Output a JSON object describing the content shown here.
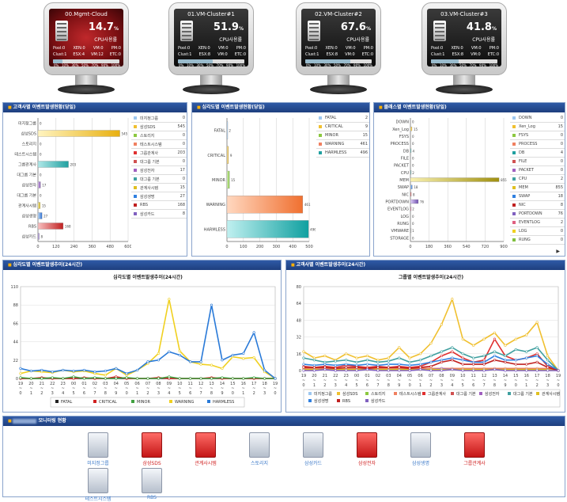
{
  "monitors": [
    {
      "name": "00.Mgmt-Cloud",
      "pct": "14.7",
      "unit": "%",
      "label": "CPU사용률",
      "r1": [
        "Pool:0",
        "XEN:0",
        "VM:0",
        "PM:0"
      ],
      "r2": [
        "Clust:1",
        "ESX:4",
        "VM:12",
        "ETC:0"
      ],
      "fill": 14.7,
      "theme": "red"
    },
    {
      "name": "01.VM-Cluster#1",
      "pct": "51.9",
      "unit": "%",
      "label": "CPU사용률",
      "r1": [
        "Pool:0",
        "XEN:0",
        "VM:0",
        "PM:0"
      ],
      "r2": [
        "Clust:1",
        "ESX:8",
        "VM:0",
        "ETC:0"
      ],
      "fill": 51.9,
      "theme": "dark"
    },
    {
      "name": "02.VM-Cluster#2",
      "pct": "67.6",
      "unit": "%",
      "label": "CPU사용률",
      "r1": [
        "Pool:0",
        "XEN:0",
        "VM:0",
        "PM:0"
      ],
      "r2": [
        "Clust:1",
        "ESX:8",
        "VM:0",
        "ETC:0"
      ],
      "fill": 67.6,
      "theme": "dark"
    },
    {
      "name": "03.VM-Cluster#3",
      "pct": "41.8",
      "unit": "%",
      "label": "CPU사용률",
      "r1": [
        "Pool:0",
        "XEN:0",
        "VM:0",
        "PM:0"
      ],
      "r2": [
        "Clust:1",
        "ESX:8",
        "VM:0",
        "ETC:0"
      ],
      "fill": 41.8,
      "theme": "dark"
    }
  ],
  "monitor_ticks": [
    "0%",
    "10%",
    "30%",
    "50%",
    "70%",
    "90%",
    "100%"
  ],
  "panel1": {
    "title": "고객사별 이벤트발생현황(당일)",
    "categories": [
      "미지정그룹",
      "삼성SDS",
      "스토리지",
      "테스트시스템",
      "그룹관계사",
      "대그룹 기본",
      "삼성전자",
      "대그룹 기본",
      "관계사시템",
      "삼성생명",
      "RBS",
      "삼성카드"
    ],
    "values": [
      0,
      545,
      0,
      0,
      203,
      0,
      17,
      0,
      15,
      27,
      168,
      8
    ],
    "xticks": [
      "0",
      "120",
      "240",
      "360",
      "480",
      "600"
    ],
    "legend": [
      {
        "name": "미지정그룹",
        "value": "0",
        "color": "#9ec8f0"
      },
      {
        "name": "삼성SDS",
        "value": "545",
        "color": "#f0c030"
      },
      {
        "name": "스토리지",
        "value": "0",
        "color": "#8cc840"
      },
      {
        "name": "테스트시스템",
        "value": "0",
        "color": "#f08060"
      },
      {
        "name": "그룹관계사",
        "value": "203",
        "color": "#e03030"
      },
      {
        "name": "대그룹 기본",
        "value": "0",
        "color": "#d05050"
      },
      {
        "name": "삼성전자",
        "value": "17",
        "color": "#a060c0"
      },
      {
        "name": "대그룹 기본",
        "value": "0",
        "color": "#40a0a0"
      },
      {
        "name": "관계사시템",
        "value": "15",
        "color": "#e0c020"
      },
      {
        "name": "삼성생명",
        "value": "27",
        "color": "#3080e0"
      },
      {
        "name": "RBS",
        "value": "168",
        "color": "#c02020"
      },
      {
        "name": "삼성카드",
        "value": "8",
        "color": "#8060c0"
      }
    ]
  },
  "panel2": {
    "title": "심각도별 이벤트발생현황(당일)",
    "categories": [
      "FATAL",
      "CRITICAL",
      "MINOR",
      "WARNING",
      "HARMLESS"
    ],
    "values": [
      2,
      9,
      15,
      461,
      496
    ],
    "xticks": [
      "0",
      "100",
      "200",
      "300",
      "400",
      "500"
    ],
    "legend": [
      {
        "name": "FATAL",
        "value": "2",
        "color": "#9ec8f0"
      },
      {
        "name": "CRITICAL",
        "value": "9",
        "color": "#f0c030"
      },
      {
        "name": "MINOR",
        "value": "15",
        "color": "#8cc840"
      },
      {
        "name": "WARNING",
        "value": "461",
        "color": "#f08060"
      },
      {
        "name": "HARMLESS",
        "value": "496",
        "color": "#20a0a0"
      }
    ]
  },
  "panel3": {
    "title": "클래스별 이벤트발생현황(당일)",
    "categories": [
      "DOWN",
      "Xen_Log",
      "FSYS",
      "PROCESS",
      "DB",
      "FILE",
      "PACKET",
      "CPU",
      "MEM",
      "SWAP",
      "NIC",
      "PORTDOWN",
      "EVENTLOG",
      "LOG",
      "RUNG",
      "VMWARE",
      "STORAGE"
    ],
    "values": [
      0,
      15,
      0,
      0,
      4,
      0,
      0,
      2,
      855,
      18,
      8,
      76,
      2,
      0,
      0,
      1,
      0
    ],
    "xticks": [
      "0",
      "180",
      "360",
      "540",
      "720",
      "900"
    ],
    "legend": [
      {
        "name": "DOWN",
        "value": "0",
        "color": "#9ec8f0"
      },
      {
        "name": "Xen_Log",
        "value": "15",
        "color": "#f0c030"
      },
      {
        "name": "FSYS",
        "value": "0",
        "color": "#8cc840"
      },
      {
        "name": "PROCESS",
        "value": "0",
        "color": "#f08060"
      },
      {
        "name": "DB",
        "value": "4",
        "color": "#20a0a0"
      },
      {
        "name": "FILE",
        "value": "0",
        "color": "#d05050"
      },
      {
        "name": "PACKET",
        "value": "0",
        "color": "#a060c0"
      },
      {
        "name": "CPU",
        "value": "2",
        "color": "#40a0a0"
      },
      {
        "name": "MEM",
        "value": "855",
        "color": "#e0c020"
      },
      {
        "name": "SWAP",
        "value": "18",
        "color": "#3080e0"
      },
      {
        "name": "NIC",
        "value": "8",
        "color": "#c02020"
      },
      {
        "name": "PORTDOWN",
        "value": "76",
        "color": "#8060c0"
      },
      {
        "name": "EVENTLOG",
        "value": "2",
        "color": "#e06080"
      },
      {
        "name": "LOG",
        "value": "0",
        "color": "#f0d020"
      },
      {
        "name": "RUNG",
        "value": "0",
        "color": "#80c040"
      }
    ]
  },
  "panel4": {
    "title": "심각도별 이벤트발생추이(24시간)",
    "chart_title": "심각도별 이벤트발생추이(24시간)",
    "yticks": [
      "0",
      "22",
      "44",
      "66",
      "88",
      "110"
    ],
    "x_top": [
      "19",
      "20",
      "21",
      "22",
      "23",
      "00",
      "01",
      "02",
      "03",
      "04",
      "05",
      "06",
      "07",
      "08",
      "09",
      "10",
      "11",
      "12",
      "13",
      "14",
      "15",
      "16",
      "17",
      "18",
      "19"
    ],
    "x_bottom": [
      "0",
      "1",
      "2",
      "3",
      "4",
      "5",
      "6",
      "7",
      "8",
      "9",
      "0",
      "1",
      "2",
      "3",
      "4",
      "5",
      "6",
      "7",
      "8",
      "9",
      "0",
      "1",
      "2",
      "3",
      "0"
    ],
    "series": [
      {
        "name": "FATAL",
        "color": "#222222",
        "values": [
          0,
          0,
          0,
          0,
          0,
          0,
          0,
          0,
          0,
          0,
          0,
          0,
          0,
          0,
          0,
          0,
          0,
          0,
          0,
          0,
          0,
          0,
          0,
          0,
          0
        ]
      },
      {
        "name": "CRITICAL",
        "color": "#d02020",
        "values": [
          0,
          0,
          1,
          0,
          0,
          0,
          1,
          0,
          0,
          2,
          0,
          0,
          0,
          1,
          0,
          0,
          0,
          0,
          1,
          0,
          0,
          0,
          0,
          0,
          0
        ]
      },
      {
        "name": "MINOR",
        "color": "#40a040",
        "values": [
          1,
          0,
          0,
          1,
          0,
          2,
          0,
          1,
          0,
          0,
          1,
          0,
          0,
          0,
          2,
          0,
          0,
          0,
          0,
          1,
          0,
          0,
          1,
          0,
          0
        ]
      },
      {
        "name": "WARNING",
        "color": "#f0d020",
        "values": [
          6,
          9,
          8,
          7,
          10,
          8,
          9,
          6,
          4,
          12,
          4,
          10,
          18,
          30,
          95,
          33,
          20,
          17,
          16,
          12,
          26,
          24,
          25,
          8,
          0
        ]
      },
      {
        "name": "HARMLESS",
        "color": "#2a7ad8",
        "values": [
          12,
          9,
          10,
          8,
          10,
          9,
          10,
          8,
          9,
          12,
          6,
          10,
          20,
          22,
          32,
          28,
          20,
          20,
          88,
          22,
          28,
          30,
          55,
          10,
          0
        ]
      }
    ],
    "ymax": 110
  },
  "panel5": {
    "title": "고객사별 이벤트발생추이(24시간)",
    "chart_title": "그룹별 이벤트발생추이(24시간)",
    "yticks": [
      "0",
      "16",
      "32",
      "48",
      "64",
      "80"
    ],
    "x_top": [
      "19",
      "20",
      "21",
      "22",
      "23",
      "00",
      "01",
      "02",
      "03",
      "04",
      "05",
      "06",
      "07",
      "08",
      "09",
      "10",
      "11",
      "12",
      "13",
      "14",
      "15",
      "16",
      "17",
      "18",
      "19"
    ],
    "x_bottom": [
      "0",
      "1",
      "2",
      "3",
      "4",
      "5",
      "6",
      "7",
      "8",
      "9",
      "0",
      "1",
      "2",
      "3",
      "4",
      "5",
      "6",
      "7",
      "8",
      "9",
      "0",
      "1",
      "2",
      "3",
      "0"
    ],
    "series": [
      {
        "name": "미지정그룹",
        "color": "#9ec8f0",
        "values": [
          2,
          2,
          2,
          2,
          2,
          2,
          2,
          2,
          2,
          2,
          2,
          2,
          2,
          2,
          2,
          2,
          2,
          2,
          2,
          2,
          2,
          2,
          2,
          2,
          0
        ]
      },
      {
        "name": "삼성SDS",
        "color": "#f0c030",
        "values": [
          18,
          12,
          14,
          10,
          16,
          12,
          14,
          10,
          12,
          22,
          12,
          16,
          26,
          44,
          68,
          30,
          24,
          30,
          36,
          24,
          30,
          34,
          46,
          14,
          0
        ]
      },
      {
        "name": "스토리지",
        "color": "#8cc840",
        "values": [
          1,
          1,
          1,
          1,
          1,
          1,
          1,
          1,
          1,
          1,
          1,
          1,
          1,
          1,
          1,
          1,
          1,
          1,
          1,
          1,
          1,
          1,
          1,
          1,
          0
        ]
      },
      {
        "name": "테스트시스템",
        "color": "#f08060",
        "values": [
          2,
          2,
          2,
          2,
          2,
          2,
          2,
          2,
          2,
          2,
          2,
          2,
          2,
          2,
          2,
          2,
          2,
          2,
          2,
          2,
          2,
          2,
          2,
          2,
          0
        ]
      },
      {
        "name": "그룹관계사",
        "color": "#e03030",
        "values": [
          4,
          3,
          4,
          3,
          5,
          4,
          3,
          4,
          3,
          4,
          3,
          4,
          8,
          14,
          18,
          12,
          8,
          10,
          30,
          14,
          10,
          12,
          16,
          4,
          0
        ]
      },
      {
        "name": "대그룹 기본",
        "color": "#d05050",
        "values": [
          1,
          1,
          1,
          1,
          1,
          1,
          1,
          1,
          1,
          1,
          1,
          1,
          1,
          1,
          1,
          1,
          1,
          1,
          1,
          1,
          1,
          1,
          1,
          1,
          0
        ]
      },
      {
        "name": "삼성전자",
        "color": "#a060c0",
        "values": [
          1,
          1,
          1,
          0,
          1,
          1,
          1,
          0,
          1,
          1,
          0,
          1,
          1,
          2,
          1,
          1,
          1,
          1,
          1,
          1,
          1,
          1,
          1,
          1,
          0
        ]
      },
      {
        "name": "대그룹 기본",
        "color": "#40a0a0",
        "values": [
          12,
          10,
          8,
          9,
          10,
          8,
          10,
          8,
          9,
          12,
          8,
          10,
          14,
          18,
          22,
          16,
          12,
          14,
          18,
          14,
          20,
          18,
          22,
          10,
          0
        ]
      },
      {
        "name": "관계사시템",
        "color": "#e0c020",
        "values": [
          1,
          1,
          1,
          1,
          1,
          1,
          1,
          1,
          1,
          1,
          1,
          1,
          1,
          1,
          1,
          1,
          1,
          1,
          1,
          1,
          1,
          1,
          1,
          1,
          0
        ]
      },
      {
        "name": "삼성생명",
        "color": "#3080e0",
        "values": [
          6,
          5,
          6,
          5,
          6,
          5,
          6,
          5,
          6,
          6,
          5,
          6,
          8,
          10,
          12,
          10,
          8,
          8,
          14,
          10,
          10,
          12,
          14,
          6,
          0
        ]
      },
      {
        "name": "RBS",
        "color": "#c02020",
        "values": [
          3,
          3,
          3,
          2,
          3,
          3,
          2,
          3,
          3,
          3,
          2,
          3,
          4,
          8,
          10,
          6,
          6,
          6,
          10,
          8,
          6,
          6,
          8,
          3,
          0
        ]
      },
      {
        "name": "삼성카드",
        "color": "#8060c0",
        "values": [
          0,
          0,
          1,
          0,
          0,
          0,
          1,
          0,
          0,
          0,
          0,
          1,
          0,
          0,
          1,
          0,
          0,
          0,
          1,
          0,
          0,
          0,
          0,
          0,
          0
        ]
      }
    ],
    "ymax": 80
  },
  "panel6": {
    "title": "모니터링 현황",
    "servers": [
      {
        "name": "미지정그룹",
        "state": "gray"
      },
      {
        "name": "삼성SDS",
        "state": "red"
      },
      {
        "name": "관계사시템",
        "state": "red"
      },
      {
        "name": "스토리지",
        "state": "gray"
      },
      {
        "name": "삼성카드",
        "state": "gray"
      },
      {
        "name": "삼성전자",
        "state": "red"
      },
      {
        "name": "삼성생명",
        "state": "gray"
      },
      {
        "name": "그룹관계사",
        "state": "red"
      },
      {
        "name": "테스트시스템",
        "state": "gray"
      },
      {
        "name": "RBS",
        "state": "gray"
      }
    ]
  }
}
